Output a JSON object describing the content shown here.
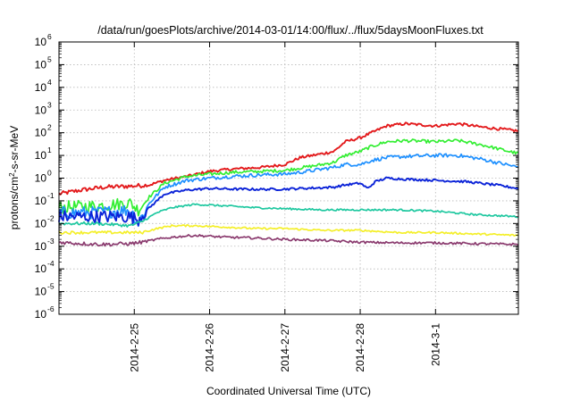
{
  "chart_data": {
    "type": "line",
    "title": "/data/run/goesPlots/archive/2014-03-01/14:00/flux/../flux/5daysMoonFluxes.txt",
    "xlabel": "Coordinated Universal Time (UTC)",
    "ylabel": "protons/cm²-s-sr-MeV",
    "yscale": "log",
    "ylim": [
      1e-06,
      1000000.0
    ],
    "xlim": [
      0,
      6.1
    ],
    "x_unit": "days since 2014-02-24 00:00 UTC",
    "grid": true,
    "legend": "none",
    "x_ticks": [
      {
        "x": 1,
        "label": "2014-2-25"
      },
      {
        "x": 2,
        "label": "2014-2-26"
      },
      {
        "x": 3,
        "label": "2014-2-27"
      },
      {
        "x": 4,
        "label": "2014-2-28"
      },
      {
        "x": 5,
        "label": "2014-3-1"
      }
    ],
    "y_ticks": [
      {
        "v": -6,
        "label": "10",
        "exp": "-6"
      },
      {
        "v": -5,
        "label": "10",
        "exp": "-5"
      },
      {
        "v": -4,
        "label": "10",
        "exp": "-4"
      },
      {
        "v": -3,
        "label": "10",
        "exp": "-3"
      },
      {
        "v": -2,
        "label": "10",
        "exp": "-2"
      },
      {
        "v": -1,
        "label": "10",
        "exp": "-1"
      },
      {
        "v": 0,
        "label": "10",
        "exp": "0"
      },
      {
        "v": 1,
        "label": "10",
        "exp": "1"
      },
      {
        "v": 2,
        "label": "10",
        "exp": "2"
      },
      {
        "v": 3,
        "label": "10",
        "exp": "3"
      },
      {
        "v": 4,
        "label": "10",
        "exp": "4"
      },
      {
        "v": 5,
        "label": "10",
        "exp": "5"
      },
      {
        "v": 6,
        "label": "10",
        "exp": "6"
      }
    ],
    "series": [
      {
        "color": "#e31a1c",
        "noise": 0.06,
        "x": [
          0.0,
          0.3,
          0.6,
          1.0,
          1.2,
          1.4,
          1.7,
          2.0,
          2.3,
          2.7,
          3.0,
          3.2,
          3.5,
          3.65,
          3.8,
          4.0,
          4.15,
          4.35,
          4.6,
          5.0,
          5.3,
          5.6,
          6.1
        ],
        "y": [
          0.2,
          0.3,
          0.4,
          0.45,
          0.5,
          0.8,
          1.2,
          2.0,
          2.5,
          3.0,
          4.0,
          8.0,
          12.0,
          15.0,
          40.0,
          60.0,
          100.0,
          200.0,
          250.0,
          200.0,
          250.0,
          180.0,
          120.0
        ]
      },
      {
        "color": "#33ee33",
        "noise": 0.07,
        "x": [
          0.0,
          0.5,
          0.95,
          1.05,
          1.2,
          1.4,
          1.7,
          2.0,
          2.3,
          2.7,
          3.0,
          3.2,
          3.5,
          3.65,
          3.8,
          4.0,
          4.15,
          4.35,
          4.6,
          5.0,
          5.3,
          5.6,
          6.1
        ],
        "y": [
          0.05,
          0.06,
          0.08,
          0.04,
          0.15,
          0.6,
          1.2,
          1.5,
          1.8,
          2.0,
          2.2,
          2.8,
          4.0,
          5.0,
          10.0,
          15.0,
          25.0,
          40.0,
          45.0,
          40.0,
          45.0,
          30.0,
          12.0
        ]
      },
      {
        "color": "#1e90ff",
        "noise": 0.08,
        "x": [
          0.0,
          0.5,
          0.95,
          1.05,
          1.2,
          1.4,
          1.7,
          2.0,
          2.3,
          2.7,
          3.0,
          3.2,
          3.5,
          3.65,
          3.8,
          4.0,
          4.15,
          4.35,
          4.6,
          5.0,
          5.3,
          5.6,
          6.1
        ],
        "y": [
          0.03,
          0.03,
          0.04,
          0.01,
          0.08,
          0.4,
          0.8,
          1.0,
          1.2,
          1.4,
          1.5,
          1.8,
          2.5,
          3.0,
          4.0,
          4.0,
          6.0,
          8.0,
          9.0,
          10.0,
          10.0,
          7.0,
          3.0
        ]
      },
      {
        "color": "#0b23d8",
        "noise": 0.05,
        "x": [
          0.0,
          0.5,
          0.95,
          1.05,
          1.2,
          1.4,
          1.7,
          2.0,
          2.3,
          2.7,
          3.0,
          3.2,
          3.5,
          3.65,
          3.8,
          4.0,
          4.1,
          4.2,
          4.35,
          4.6,
          5.0,
          5.4,
          5.8,
          6.1
        ],
        "y": [
          0.02,
          0.02,
          0.02,
          0.015,
          0.05,
          0.2,
          0.3,
          0.35,
          0.33,
          0.32,
          0.33,
          0.35,
          0.38,
          0.4,
          0.5,
          0.6,
          0.35,
          0.7,
          1.0,
          0.9,
          0.8,
          0.7,
          0.5,
          0.35
        ]
      },
      {
        "color": "#1fc8a0",
        "noise": 0.04,
        "x": [
          0.0,
          0.5,
          0.95,
          1.1,
          1.3,
          1.5,
          1.8,
          2.2,
          2.6,
          3.0,
          3.5,
          4.0,
          4.5,
          5.0,
          5.5,
          6.1
        ],
        "y": [
          0.01,
          0.01,
          0.008,
          0.012,
          0.03,
          0.05,
          0.07,
          0.06,
          0.05,
          0.045,
          0.04,
          0.04,
          0.04,
          0.035,
          0.025,
          0.02
        ]
      },
      {
        "color": "#f4ef2a",
        "noise": 0.04,
        "x": [
          0.0,
          0.5,
          0.95,
          1.1,
          1.3,
          1.5,
          1.8,
          2.2,
          2.6,
          3.0,
          3.5,
          4.0,
          4.5,
          5.0,
          5.5,
          6.1
        ],
        "y": [
          0.004,
          0.004,
          0.004,
          0.004,
          0.006,
          0.008,
          0.008,
          0.007,
          0.006,
          0.006,
          0.005,
          0.005,
          0.004,
          0.004,
          0.0035,
          0.003
        ]
      },
      {
        "color": "#8a3a6e",
        "noise": 0.05,
        "x": [
          0.0,
          0.3,
          0.6,
          0.95,
          1.1,
          1.3,
          1.5,
          1.8,
          2.2,
          2.6,
          3.0,
          3.5,
          4.0,
          4.5,
          5.0,
          5.5,
          6.1
        ],
        "y": [
          0.0015,
          0.0013,
          0.0012,
          0.0013,
          0.0015,
          0.002,
          0.0025,
          0.003,
          0.0025,
          0.0023,
          0.002,
          0.0018,
          0.0015,
          0.0014,
          0.0014,
          0.0013,
          0.0012
        ]
      }
    ]
  }
}
